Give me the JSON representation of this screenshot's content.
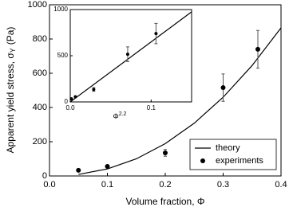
{
  "chart_data": [
    {
      "type": "scatter",
      "xlabel": "Volume fraction, Φ",
      "ylabel": {
        "text": "Apparent yield stress, σ",
        "sub": "Y",
        "after": "(Pa)"
      },
      "xlim": [
        0,
        0.4
      ],
      "ylim": [
        0,
        1000
      ],
      "xticks": [
        {
          "value": 0,
          "label": "0.0"
        },
        0.1,
        0.2,
        0.3,
        0.4
      ],
      "yticks": [
        0,
        200,
        400,
        600,
        800,
        1000
      ],
      "legend": "lower right",
      "series": [
        {
          "name": "theory",
          "color": "#000000",
          "kind": "line",
          "x": [
            0.05,
            0.1,
            0.15,
            0.2,
            0.25,
            0.3,
            0.35,
            0.4
          ],
          "values": [
            9,
            41,
            100,
            189,
            308,
            460,
            645,
            865
          ]
        },
        {
          "name": "experiments",
          "color": "#000000",
          "kind": "markers",
          "x": [
            0.05,
            0.1,
            0.2,
            0.3,
            0.36
          ],
          "values": [
            33,
            56,
            135,
            516,
            740
          ],
          "errors": [
            null,
            null,
            20,
            80,
            110
          ]
        }
      ]
    },
    {
      "type": "scatter",
      "xlabel": {
        "base": "Φ",
        "sup": "2.2"
      },
      "xlim": [
        0,
        0.15
      ],
      "ylim": [
        0,
        1000
      ],
      "xticks": [
        {
          "value": 0,
          "label": "0.0"
        },
        0.1
      ],
      "yticks": [
        0,
        500,
        1000
      ],
      "series": [
        {
          "color": "#000000",
          "kind": "line",
          "x": [
            0,
            0.15
          ],
          "values": [
            0,
            975
          ]
        },
        {
          "color": "#000000",
          "kind": "markers",
          "x": [
            0.0014,
            0.0063,
            0.029,
            0.071,
            0.106
          ],
          "values": [
            33,
            56,
            135,
            516,
            740
          ],
          "errors": [
            null,
            null,
            20,
            80,
            110
          ]
        }
      ]
    }
  ]
}
